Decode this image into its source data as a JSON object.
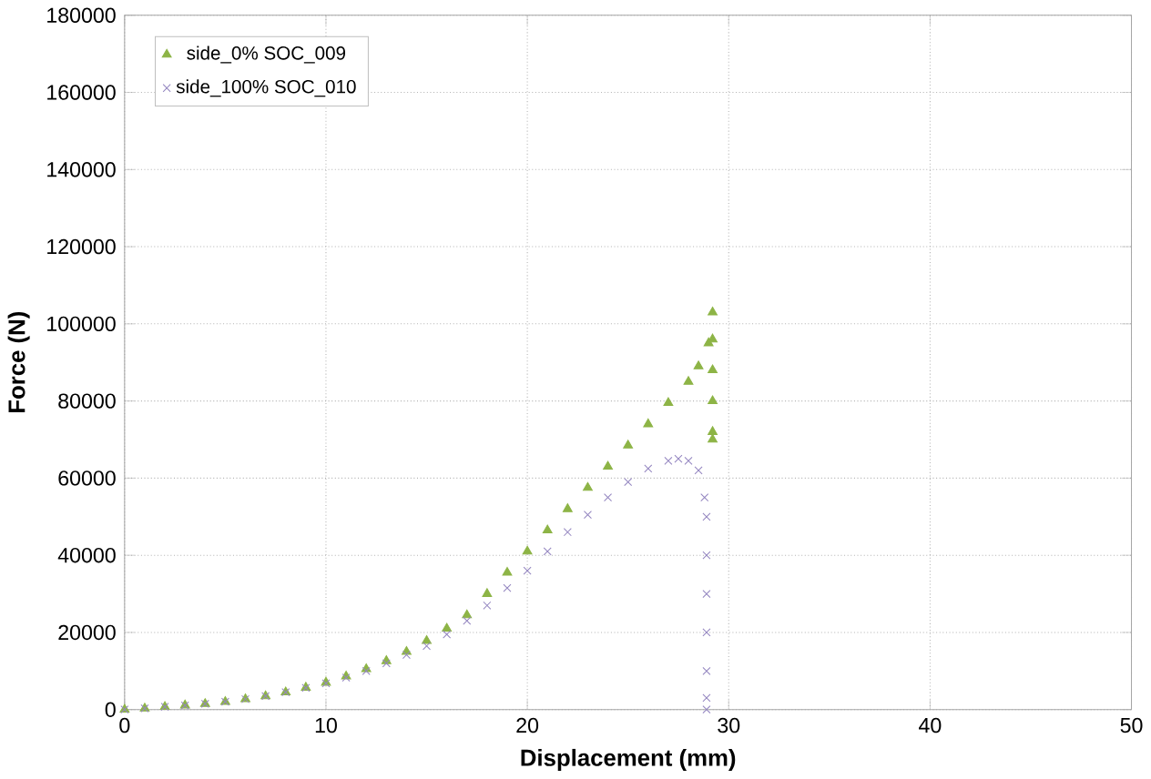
{
  "chart_data": {
    "type": "scatter",
    "xlabel": "Displacement (mm)",
    "ylabel": "Force (N)",
    "xlim": [
      0,
      50
    ],
    "ylim": [
      0,
      180000
    ],
    "xticks": [
      0,
      10,
      20,
      30,
      40,
      50
    ],
    "yticks": [
      0,
      20000,
      40000,
      60000,
      80000,
      100000,
      120000,
      140000,
      160000,
      180000
    ],
    "grid": true,
    "legend": "top left",
    "series": [
      {
        "name": "side_0% SOC_009",
        "color": "#8db446",
        "marker": "triangle",
        "x": [
          0,
          1,
          2,
          3,
          4,
          5,
          6,
          7,
          8,
          9,
          10,
          11,
          12,
          13,
          14,
          15,
          16,
          17,
          18,
          19,
          20,
          21,
          22,
          23,
          24,
          25,
          26,
          27,
          28,
          28.5,
          29,
          29.2,
          29.2,
          29.2,
          29.2,
          29.2,
          29.2
        ],
        "values": [
          0,
          300,
          700,
          1100,
          1500,
          2000,
          2700,
          3500,
          4500,
          5700,
          7000,
          8600,
          10500,
          12600,
          15000,
          17800,
          21000,
          24500,
          30000,
          35500,
          41000,
          46500,
          52000,
          57500,
          63000,
          68500,
          74000,
          79500,
          85000,
          89000,
          95000,
          103000,
          96000,
          88000,
          80000,
          72000,
          70000
        ]
      },
      {
        "name": "side_100% SOC_010",
        "color": "#9486c0",
        "marker": "cross",
        "x": [
          0,
          1,
          2,
          3,
          4,
          5,
          6,
          7,
          8,
          9,
          10,
          11,
          12,
          13,
          14,
          15,
          16,
          17,
          18,
          19,
          20,
          21,
          22,
          23,
          24,
          25,
          26,
          27,
          27.5,
          28,
          28.5,
          28.8,
          28.9,
          28.9,
          28.9,
          28.9,
          28.9,
          28.9,
          28.9
        ],
        "values": [
          0,
          300,
          700,
          1100,
          1500,
          2000,
          2700,
          3500,
          4500,
          5600,
          6800,
          8300,
          10000,
          12000,
          14200,
          16500,
          19500,
          23000,
          27000,
          31500,
          36000,
          41000,
          46000,
          50500,
          55000,
          59000,
          62500,
          64500,
          65000,
          64500,
          62000,
          55000,
          50000,
          40000,
          30000,
          20000,
          10000,
          3000,
          0
        ]
      }
    ]
  }
}
